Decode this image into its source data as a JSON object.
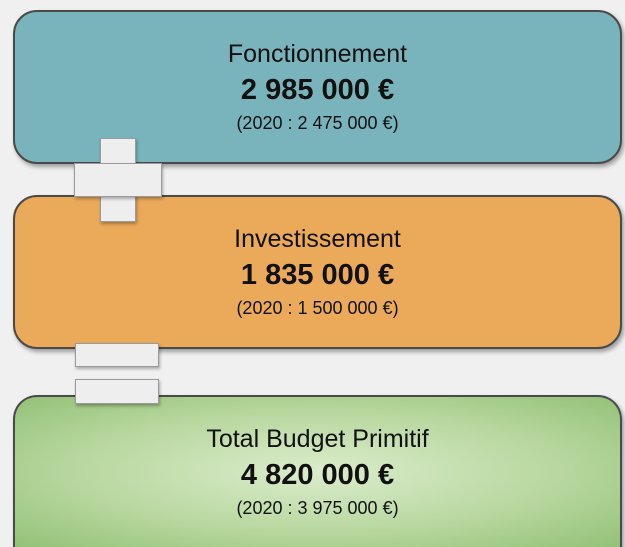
{
  "boxes": [
    {
      "label": "Fonctionnement",
      "amount": "2 985 000 €",
      "previous": "(2020 : 2 475 000 €)"
    },
    {
      "label": "Investissement",
      "amount": "1 835 000 €",
      "previous": "(2020 : 1 500 000 €)"
    },
    {
      "label": "Total Budget Primitif",
      "amount": "4 820 000 €",
      "previous": "(2020 : 3 975 000 €)"
    }
  ]
}
